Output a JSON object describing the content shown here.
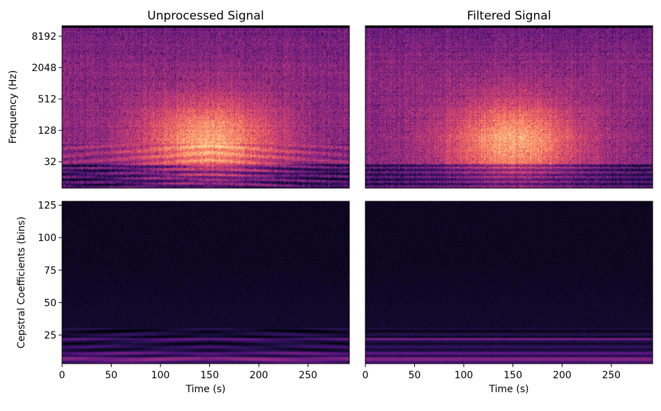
{
  "chart_data": [
    {
      "type": "heatmap",
      "title": "Unprocessed Signal",
      "xlabel": "",
      "ylabel": "Frequency (Hz)",
      "xlim": [
        0,
        292
      ],
      "yscale": "log",
      "ylim": [
        10,
        13000
      ],
      "ytick_values": [
        32,
        128,
        512,
        2048,
        8192
      ],
      "ytick_labels": [
        "32",
        "128",
        "512",
        "2048",
        "8192"
      ],
      "xtick_values": [],
      "xtick_labels": [],
      "colormap": "magma",
      "peak_time": 150,
      "peak_frequency": 80,
      "filtered": false
    },
    {
      "type": "heatmap",
      "title": "Filtered Signal",
      "xlabel": "",
      "ylabel": "",
      "xlim": [
        0,
        292
      ],
      "yscale": "log",
      "ylim": [
        10,
        13000
      ],
      "ytick_values": [],
      "ytick_labels": [],
      "xtick_values": [],
      "xtick_labels": [],
      "colormap": "magma",
      "peak_time": 150,
      "peak_frequency": 80,
      "filtered": true
    },
    {
      "type": "heatmap",
      "title": "",
      "xlabel": "Time (s)",
      "ylabel": "Cepstral Coefficients (bins)",
      "xlim": [
        0,
        292
      ],
      "ylim": [
        3,
        128
      ],
      "ytick_values": [
        25,
        50,
        75,
        100,
        125
      ],
      "ytick_labels": [
        "25",
        "50",
        "75",
        "100",
        "125"
      ],
      "xtick_values": [
        0,
        50,
        100,
        150,
        200,
        250
      ],
      "xtick_labels": [
        "0",
        "50",
        "100",
        "150",
        "200",
        "250"
      ],
      "colormap": "magma",
      "filtered": false
    },
    {
      "type": "heatmap",
      "title": "",
      "xlabel": "Time (s)",
      "ylabel": "",
      "xlim": [
        0,
        292
      ],
      "ylim": [
        3,
        128
      ],
      "ytick_values": [],
      "ytick_labels": [],
      "xtick_values": [
        0,
        50,
        100,
        150,
        200,
        250
      ],
      "xtick_labels": [
        "0",
        "50",
        "100",
        "150",
        "200",
        "250"
      ],
      "colormap": "magma",
      "filtered": true
    }
  ]
}
